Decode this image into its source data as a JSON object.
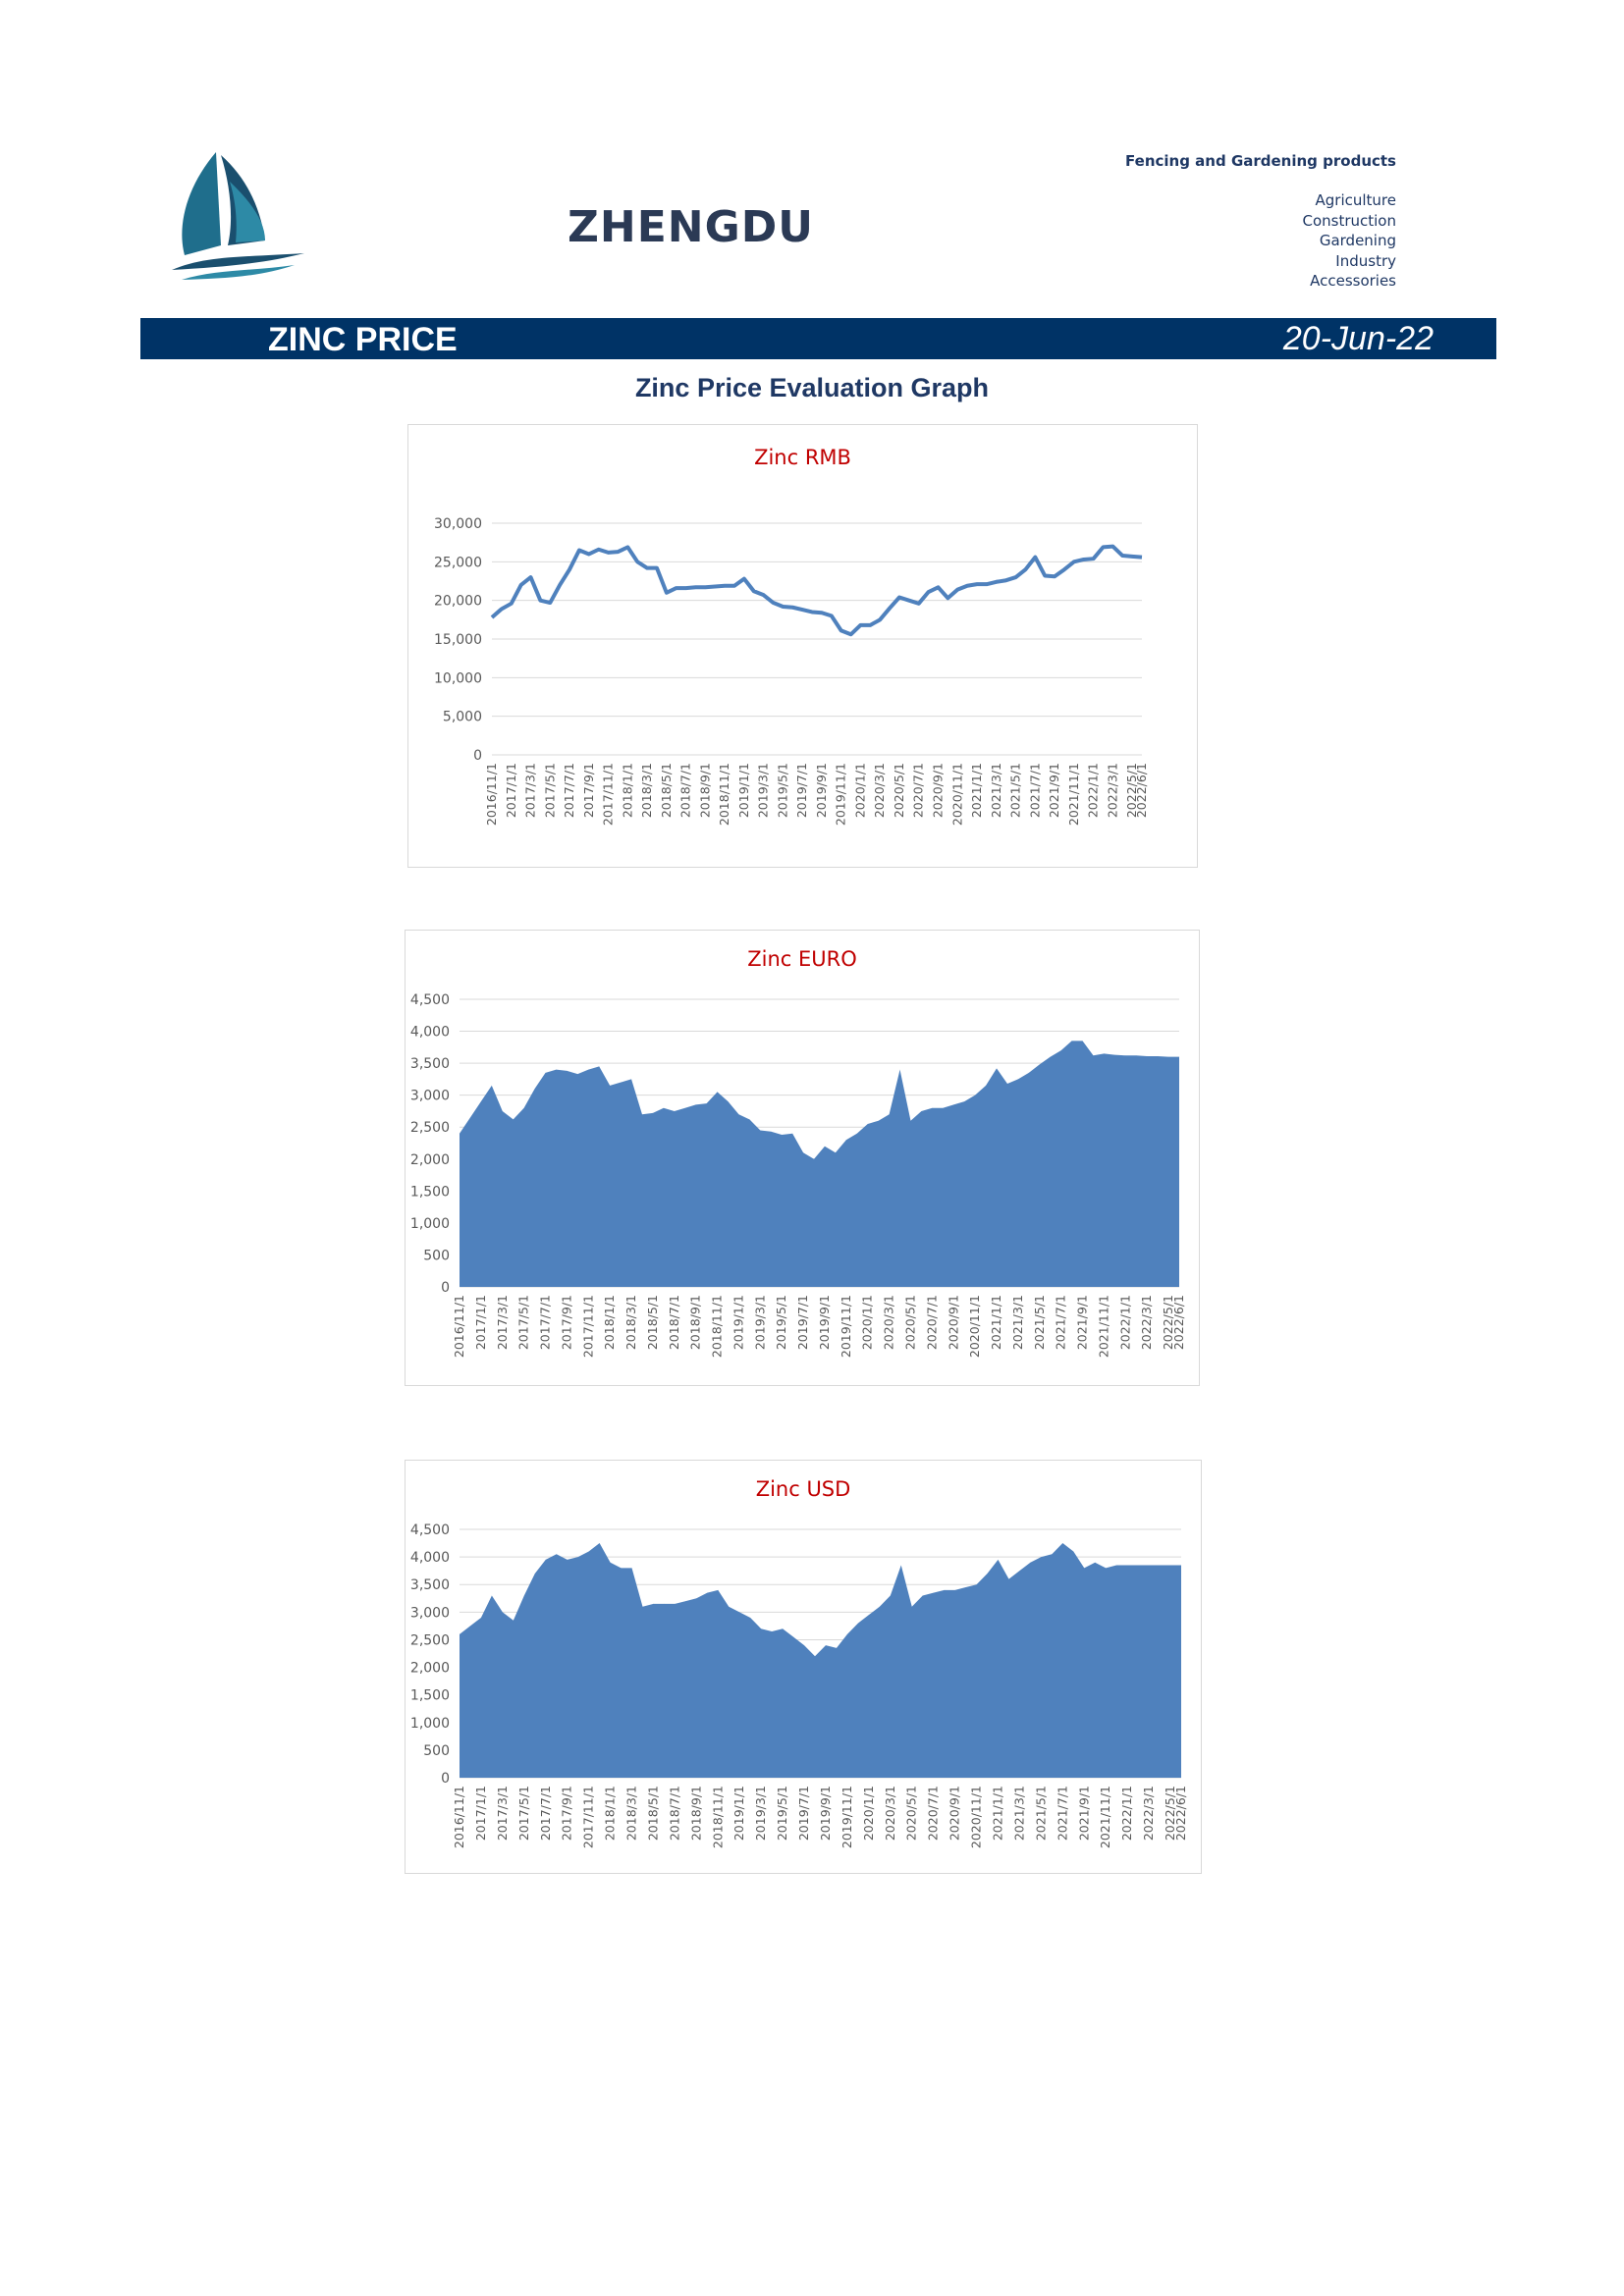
{
  "header": {
    "brand": "ZHENGDU",
    "tagline": "Fencing and Gardening products",
    "categories": [
      "Agriculture",
      "Construction",
      "Gardening",
      "Industry",
      "Accessories"
    ]
  },
  "banner": {
    "title": "ZINC PRICE",
    "date": "20-Jun-22"
  },
  "section_title": "Zinc Price Evaluation Graph",
  "colors": {
    "banner": "#003366",
    "series": "#4f81bd",
    "chart_title": "#c00000"
  },
  "chart_data": [
    {
      "type": "line",
      "title": "Zinc RMB",
      "ylim": [
        0,
        30000
      ],
      "yticks": [
        0,
        5000,
        10000,
        15000,
        20000,
        25000,
        30000
      ],
      "grid": true,
      "xtick_labels": [
        "2016/11/1",
        "2017/1/1",
        "2017/3/1",
        "2017/5/1",
        "2017/7/1",
        "2017/9/1",
        "2017/11/1",
        "2018/1/1",
        "2018/3/1",
        "2018/5/1",
        "2018/7/1",
        "2018/9/1",
        "2018/11/1",
        "2019/1/1",
        "2019/3/1",
        "2019/5/1",
        "2019/7/1",
        "2019/9/1",
        "2019/11/1",
        "2020/1/1",
        "2020/3/1",
        "2020/5/1",
        "2020/7/1",
        "2020/9/1",
        "2020/11/1",
        "2021/1/1",
        "2021/3/1",
        "2021/5/1",
        "2021/7/1",
        "2021/9/1",
        "2021/11/1",
        "2022/1/1",
        "2022/3/1",
        "2022/5/1",
        "2022/6/1"
      ],
      "series": [
        {
          "x": [
            "2016/11/1",
            "2016/12/1",
            "2017/1/1",
            "2017/2/1",
            "2017/3/1",
            "2017/4/1",
            "2017/5/1",
            "2017/6/1",
            "2017/7/1",
            "2017/8/1",
            "2017/9/1",
            "2017/10/1",
            "2017/11/1",
            "2017/12/1",
            "2018/1/1",
            "2018/2/1",
            "2018/3/1",
            "2018/4/1",
            "2018/5/1",
            "2018/6/1",
            "2018/7/1",
            "2018/8/1",
            "2018/9/1",
            "2018/10/1",
            "2018/11/1",
            "2018/12/1",
            "2019/1/1",
            "2019/2/1",
            "2019/3/1",
            "2019/4/1",
            "2019/5/1",
            "2019/6/1",
            "2019/7/1",
            "2019/8/1",
            "2019/9/1",
            "2019/10/1",
            "2019/11/1",
            "2019/12/1",
            "2020/1/1",
            "2020/2/1",
            "2020/3/1",
            "2020/4/1",
            "2020/5/1",
            "2020/6/1",
            "2020/7/1",
            "2020/8/1",
            "2020/9/1",
            "2020/10/1",
            "2020/11/1",
            "2020/12/1",
            "2021/1/1",
            "2021/2/1",
            "2021/3/1",
            "2021/4/1",
            "2021/5/1",
            "2021/6/1",
            "2021/7/1",
            "2021/8/1",
            "2021/9/1",
            "2021/10/1",
            "2021/11/1",
            "2021/12/1",
            "2022/1/1",
            "2022/2/1",
            "2022/3/1",
            "2022/4/1",
            "2022/5/1",
            "2022/6/1"
          ],
          "values": [
            17800,
            18900,
            19600,
            22000,
            23000,
            20000,
            19700,
            22000,
            24000,
            26500,
            26000,
            26600,
            26200,
            26300,
            26900,
            25000,
            24200,
            24200,
            21000,
            21600,
            21600,
            21700,
            21700,
            21800,
            21900,
            21900,
            22800,
            21200,
            20700,
            19700,
            19200,
            19100,
            18800,
            18500,
            18400,
            18000,
            16100,
            15600,
            16800,
            16800,
            17500,
            19000,
            20400,
            20000,
            19600,
            21100,
            21700,
            20300,
            21400,
            21900,
            22100,
            22100,
            22400,
            22600,
            23000,
            24000,
            25600,
            23200,
            23100,
            24000,
            25000,
            25300,
            25400,
            26900,
            27000,
            25800,
            25700,
            25600
          ]
        }
      ]
    },
    {
      "type": "area",
      "title": "Zinc EURO",
      "ylim": [
        0,
        4500
      ],
      "yticks": [
        0,
        500,
        1000,
        1500,
        2000,
        2500,
        3000,
        3500,
        4000,
        4500
      ],
      "grid": true,
      "xtick_labels": [
        "2016/11/1",
        "2017/1/1",
        "2017/3/1",
        "2017/5/1",
        "2017/7/1",
        "2017/9/1",
        "2017/11/1",
        "2018/1/1",
        "2018/3/1",
        "2018/5/1",
        "2018/7/1",
        "2018/9/1",
        "2018/11/1",
        "2019/1/1",
        "2019/3/1",
        "2019/5/1",
        "2019/7/1",
        "2019/9/1",
        "2019/11/1",
        "2020/1/1",
        "2020/3/1",
        "2020/5/1",
        "2020/7/1",
        "2020/9/1",
        "2020/11/1",
        "2021/1/1",
        "2021/3/1",
        "2021/5/1",
        "2021/7/1",
        "2021/9/1",
        "2021/11/1",
        "2022/1/1",
        "2022/3/1",
        "2022/5/1",
        "2022/6/1"
      ],
      "series": [
        {
          "x": [
            "2016/11/1",
            "2016/12/1",
            "2017/1/1",
            "2017/2/1",
            "2017/3/1",
            "2017/4/1",
            "2017/5/1",
            "2017/6/1",
            "2017/7/1",
            "2017/8/1",
            "2017/9/1",
            "2017/10/1",
            "2017/11/1",
            "2017/12/1",
            "2018/1/1",
            "2018/2/1",
            "2018/3/1",
            "2018/4/1",
            "2018/5/1",
            "2018/6/1",
            "2018/7/1",
            "2018/8/1",
            "2018/9/1",
            "2018/10/1",
            "2018/11/1",
            "2018/12/1",
            "2019/1/1",
            "2019/2/1",
            "2019/3/1",
            "2019/4/1",
            "2019/5/1",
            "2019/6/1",
            "2019/7/1",
            "2019/8/1",
            "2019/9/1",
            "2019/10/1",
            "2019/11/1",
            "2019/12/1",
            "2020/1/1",
            "2020/2/1",
            "2020/3/1",
            "2020/4/1",
            "2020/5/1",
            "2020/6/1",
            "2020/7/1",
            "2020/8/1",
            "2020/9/1",
            "2020/10/1",
            "2020/11/1",
            "2020/12/1",
            "2021/1/1",
            "2021/2/1",
            "2021/3/1",
            "2021/4/1",
            "2021/5/1",
            "2021/6/1",
            "2021/7/1",
            "2021/8/1",
            "2021/9/1",
            "2021/10/1",
            "2021/11/1",
            "2021/12/1",
            "2022/1/1",
            "2022/2/1",
            "2022/3/1",
            "2022/4/1",
            "2022/5/1",
            "2022/6/1"
          ],
          "values": [
            2400,
            2650,
            2900,
            3150,
            2750,
            2620,
            2800,
            3100,
            3350,
            3400,
            3380,
            3330,
            3400,
            3450,
            3150,
            3200,
            3250,
            2700,
            2720,
            2800,
            2750,
            2800,
            2850,
            2870,
            3050,
            2900,
            2700,
            2620,
            2450,
            2430,
            2380,
            2400,
            2100,
            2000,
            2200,
            2100,
            2300,
            2400,
            2550,
            2600,
            2700,
            3400,
            2600,
            2750,
            2800,
            2800,
            2850,
            2900,
            3000,
            3150,
            3420,
            3180,
            3250,
            3350,
            3480,
            3600,
            3700,
            3850,
            3850,
            3620,
            3650,
            3630,
            3620,
            3620,
            3610,
            3610,
            3600,
            3600
          ]
        }
      ]
    },
    {
      "type": "area",
      "title": "Zinc USD",
      "ylim": [
        0,
        4500
      ],
      "yticks": [
        0,
        500,
        1000,
        1500,
        2000,
        2500,
        3000,
        3500,
        4000,
        4500
      ],
      "grid": true,
      "xtick_labels": [
        "2016/11/1",
        "2017/1/1",
        "2017/3/1",
        "2017/5/1",
        "2017/7/1",
        "2017/9/1",
        "2017/11/1",
        "2018/1/1",
        "2018/3/1",
        "2018/5/1",
        "2018/7/1",
        "2018/9/1",
        "2018/11/1",
        "2019/1/1",
        "2019/3/1",
        "2019/5/1",
        "2019/7/1",
        "2019/9/1",
        "2019/11/1",
        "2020/1/1",
        "2020/3/1",
        "2020/5/1",
        "2020/7/1",
        "2020/9/1",
        "2020/11/1",
        "2021/1/1",
        "2021/3/1",
        "2021/5/1",
        "2021/7/1",
        "2021/9/1",
        "2021/11/1",
        "2022/1/1",
        "2022/3/1",
        "2022/5/1",
        "2022/6/1"
      ],
      "series": [
        {
          "x": [
            "2016/11/1",
            "2016/12/1",
            "2017/1/1",
            "2017/2/1",
            "2017/3/1",
            "2017/4/1",
            "2017/5/1",
            "2017/6/1",
            "2017/7/1",
            "2017/8/1",
            "2017/9/1",
            "2017/10/1",
            "2017/11/1",
            "2017/12/1",
            "2018/1/1",
            "2018/2/1",
            "2018/3/1",
            "2018/4/1",
            "2018/5/1",
            "2018/6/1",
            "2018/7/1",
            "2018/8/1",
            "2018/9/1",
            "2018/10/1",
            "2018/11/1",
            "2018/12/1",
            "2019/1/1",
            "2019/2/1",
            "2019/3/1",
            "2019/4/1",
            "2019/5/1",
            "2019/6/1",
            "2019/7/1",
            "2019/8/1",
            "2019/9/1",
            "2019/10/1",
            "2019/11/1",
            "2019/12/1",
            "2020/1/1",
            "2020/2/1",
            "2020/3/1",
            "2020/4/1",
            "2020/5/1",
            "2020/6/1",
            "2020/7/1",
            "2020/8/1",
            "2020/9/1",
            "2020/10/1",
            "2020/11/1",
            "2020/12/1",
            "2021/1/1",
            "2021/2/1",
            "2021/3/1",
            "2021/4/1",
            "2021/5/1",
            "2021/6/1",
            "2021/7/1",
            "2021/8/1",
            "2021/9/1",
            "2021/10/1",
            "2021/11/1",
            "2021/12/1",
            "2022/1/1",
            "2022/2/1",
            "2022/3/1",
            "2022/4/1",
            "2022/5/1",
            "2022/6/1"
          ],
          "values": [
            2600,
            2750,
            2900,
            3300,
            3000,
            2850,
            3300,
            3700,
            3950,
            4050,
            3950,
            4000,
            4100,
            4250,
            3900,
            3800,
            3800,
            3100,
            3150,
            3150,
            3150,
            3200,
            3250,
            3350,
            3400,
            3100,
            3000,
            2900,
            2700,
            2650,
            2700,
            2550,
            2400,
            2200,
            2400,
            2350,
            2600,
            2800,
            2950,
            3100,
            3300,
            3850,
            3100,
            3300,
            3350,
            3400,
            3400,
            3450,
            3500,
            3700,
            3950,
            3600,
            3750,
            3900,
            4000,
            4050,
            4250,
            4100,
            3800,
            3900,
            3800,
            3850,
            3850,
            3850,
            3850,
            3850,
            3850,
            3850
          ]
        }
      ]
    }
  ]
}
